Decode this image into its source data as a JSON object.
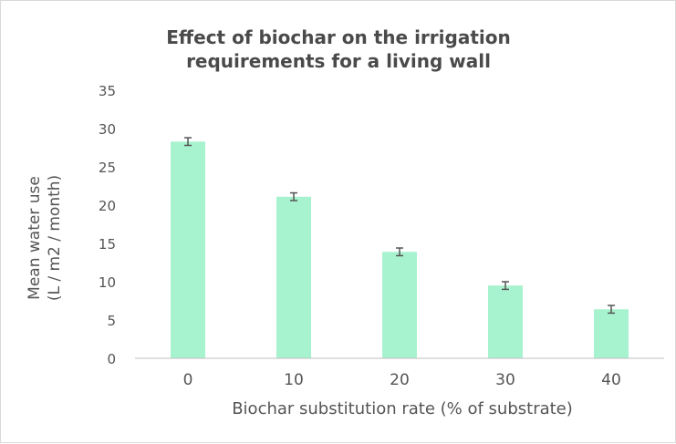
{
  "chart_data": {
    "type": "bar",
    "title": "Effect of biochar on the irrigation requirements for a living wall",
    "title_lines": [
      "Effect of biochar on the irrigation",
      "requirements for a living wall"
    ],
    "ylabel": "Mean water use (L / m2 / month)",
    "ylabel_lines": [
      "Mean water use",
      "(L / m2 / month)"
    ],
    "xlabel": "Biochar substitution rate (% of substrate)",
    "categories": [
      "0",
      "10",
      "20",
      "30",
      "40"
    ],
    "values": [
      28.3,
      21.1,
      13.9,
      9.5,
      6.4
    ],
    "error": [
      0.5,
      0.5,
      0.5,
      0.5,
      0.5
    ],
    "ylim": [
      0,
      35
    ],
    "yticks": [
      0,
      5,
      10,
      15,
      20,
      25,
      30,
      35
    ],
    "grid": false,
    "legend": "none",
    "bar_color": "#a8f3cf",
    "error_bar_color": "#555555",
    "axis_color": "#bfbfbf",
    "text_color": "#555555"
  }
}
